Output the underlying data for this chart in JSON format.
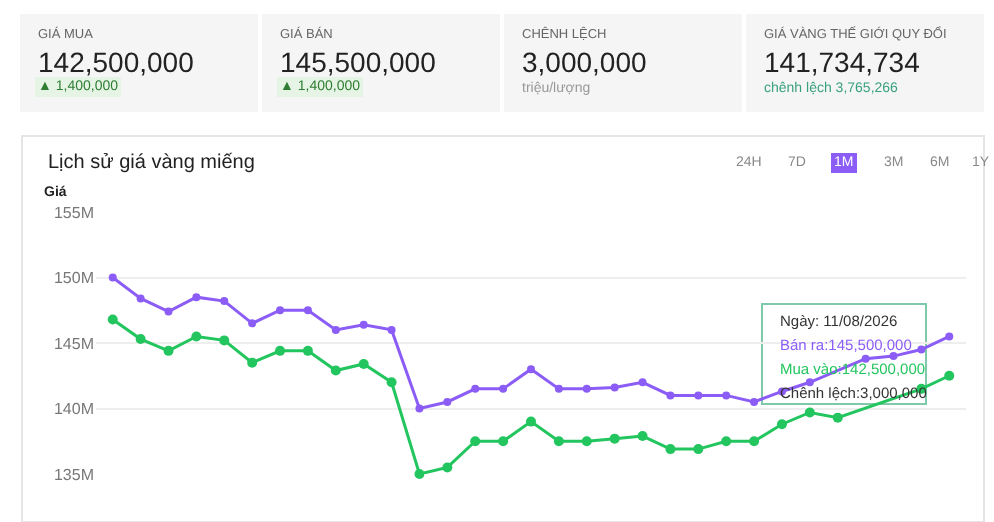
{
  "chart_data": {
    "type": "line",
    "title": "Lịch sử giá vàng miếng",
    "ylabel": "Giá",
    "categories": [
      null,
      null,
      null,
      null,
      null,
      null,
      null,
      null,
      null,
      null,
      null,
      null,
      null,
      null,
      null,
      null,
      null,
      null,
      null,
      null,
      null,
      null,
      null,
      null,
      null,
      null,
      null,
      null,
      null,
      null,
      null
    ],
    "series": [
      {
        "color": "#8b5cf6",
        "values": [
          150,
          148.4,
          147.4,
          148.5,
          148.2,
          146.5,
          147.5,
          147.5,
          146,
          146.4,
          146,
          140,
          140.5,
          141.5,
          141.5,
          143,
          141.5,
          141.5,
          141.6,
          142,
          141,
          141,
          141,
          140.5,
          141.3,
          142,
          null,
          143.8,
          144,
          144.5,
          145.5
        ]
      },
      {
        "color": "#22c55e",
        "values": [
          146.8,
          145.3,
          144.4,
          145.5,
          145.2,
          143.5,
          144.4,
          144.4,
          142.9,
          143.4,
          142,
          135,
          135.5,
          137.5,
          137.5,
          139,
          137.5,
          137.5,
          137.7,
          137.9,
          136.9,
          136.9,
          137.5,
          137.5,
          138.8,
          139.7,
          139.3,
          null,
          null,
          141.5,
          142.5
        ]
      }
    ],
    "ylim": [
      135,
      155
    ],
    "yticks": [
      {
        "value": 135,
        "label": "135M"
      },
      {
        "value": 140,
        "label": "140M"
      },
      {
        "value": 145,
        "label": "145M"
      },
      {
        "value": 150,
        "label": "150M"
      },
      {
        "value": 155,
        "label": "155M"
      }
    ],
    "grid": "y",
    "legend": false,
    "marker": "circle",
    "line_style": "solid",
    "tick_labels": "y",
    "annotations": [
      "GIÁ MUA",
      "142,500,000",
      "▲ 1,400,000",
      "GIÁ BÁN",
      "145,500,000",
      "▲ 1,400,000",
      "CHÊNH LỆCH",
      "3,000,000",
      "triệu/lượng",
      "GIÁ VÀNG THẾ GIỚI QUY ĐỔI",
      "141,734,734",
      "chênh lệch 3,765,266",
      "24H",
      "7D",
      "1M",
      "3M",
      "6M",
      "1Y",
      "Ngày: 11/08/2026",
      "Bán ra:145,500,000",
      "Mua vào:142,500,000",
      "Chênh lệch:3,000,000"
    ]
  }
}
